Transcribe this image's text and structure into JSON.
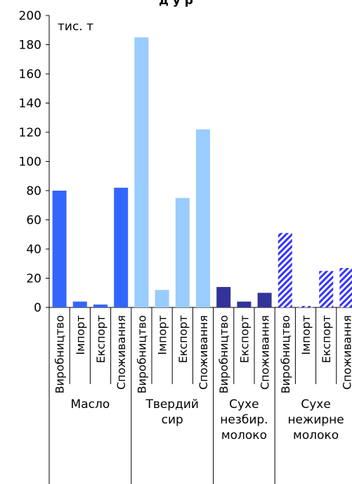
{
  "title": "д     у        р   ",
  "chart_data": {
    "type": "bar",
    "title": "",
    "ylabel": "тис. т",
    "xlabel": "",
    "ylim": [
      0,
      200
    ],
    "yticks": [
      "0",
      "20",
      "40",
      "60",
      "80",
      "100",
      "120",
      "140",
      "160",
      "180",
      "200"
    ],
    "grid": false,
    "groups": [
      {
        "label_lines": [
          "Масло"
        ],
        "color": "#3366ff",
        "pattern": "solid",
        "bars": [
          {
            "label": "Виробництво",
            "value": 80
          },
          {
            "label": "Імпорт",
            "value": 4
          },
          {
            "label": "Експорт",
            "value": 2
          },
          {
            "label": "Споживання",
            "value": 82
          }
        ]
      },
      {
        "label_lines": [
          "Твердий",
          "сир"
        ],
        "color": "#99ccff",
        "pattern": "solid",
        "bars": [
          {
            "label": "Виробництво",
            "value": 185
          },
          {
            "label": "Імпорт",
            "value": 12
          },
          {
            "label": "Експорт",
            "value": 75
          },
          {
            "label": "Споживання",
            "value": 122
          }
        ]
      },
      {
        "label_lines": [
          "Сухе",
          "незбир.",
          "молоко"
        ],
        "color": "#333399",
        "pattern": "solid",
        "bars": [
          {
            "label": "Виробництво",
            "value": 14
          },
          {
            "label": "Експорт",
            "value": 4
          },
          {
            "label": "Споживання",
            "value": 10
          }
        ]
      },
      {
        "label_lines": [
          "Сухе",
          "нежирне",
          "молоко"
        ],
        "color": "#3333ff",
        "pattern": "diagonal-stripes",
        "bars": [
          {
            "label": "Виробництво",
            "value": 51
          },
          {
            "label": "Імпорт",
            "value": 1
          },
          {
            "label": "Експорт",
            "value": 25
          },
          {
            "label": "Споживання",
            "value": 27
          }
        ]
      }
    ]
  }
}
